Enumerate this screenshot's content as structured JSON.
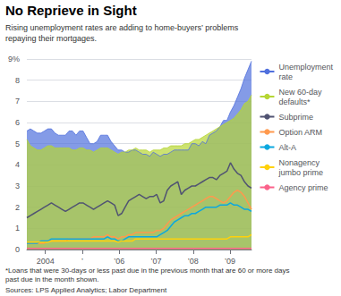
{
  "chart_data": {
    "type": "line",
    "title": "No Reprieve in Sight",
    "subtitle": "Rising unemployment rates are adding to home-buyers’ problems\nrepaying their mortgages.",
    "annotations": [
      "*Loans that were 30-days or less past due in the previous month that are 60 or more days\npast due in the month shown.",
      "Sources: LPS Applied Analytics; Labor Department"
    ],
    "x": [
      2003.5,
      2003.595,
      2003.69,
      2003.785,
      2003.88,
      2003.975,
      2004.07,
      2004.165,
      2004.26,
      2004.355,
      2004.45,
      2004.545,
      2004.64,
      2004.735,
      2004.83,
      2004.925,
      2005.02,
      2005.115,
      2005.21,
      2005.305,
      2005.4,
      2005.495,
      2005.59,
      2005.685,
      2005.78,
      2005.875,
      2005.97,
      2006.065,
      2006.16,
      2006.255,
      2006.35,
      2006.445,
      2006.54,
      2006.635,
      2006.73,
      2006.825,
      2006.92,
      2007.015,
      2007.11,
      2007.205,
      2007.3,
      2007.395,
      2007.49,
      2007.585,
      2007.68,
      2007.775,
      2007.87,
      2007.965,
      2008.06,
      2008.155,
      2008.25,
      2008.345,
      2008.44,
      2008.535,
      2008.63,
      2008.725,
      2008.82,
      2008.915,
      2009.01,
      2009.105,
      2009.2,
      2009.295,
      2009.39,
      2009.485,
      2009.58
    ],
    "xlim": [
      2003.5,
      2009.58
    ],
    "xticks": [
      2004,
      {
        "value": 2005,
        "label": "’"
      },
      {
        "value": 2006,
        "label": "’06"
      },
      {
        "value": 2007,
        "label": "’07"
      },
      {
        "value": 2008,
        "label": "’08"
      },
      {
        "value": 2009,
        "label": "’09"
      }
    ],
    "ylim": [
      0,
      9
    ],
    "yticks": [
      0,
      1,
      2,
      3,
      4,
      5,
      6,
      7,
      8,
      {
        "value": 9,
        "label": "9%"
      }
    ],
    "grid": true,
    "legend": "right",
    "series": [
      {
        "name": "Unemployment\nrate",
        "type": "area",
        "values": [
          5.6,
          5.7,
          5.6,
          5.5,
          5.5,
          5.6,
          5.7,
          5.7,
          5.5,
          5.4,
          5.4,
          5.4,
          5.6,
          5.6,
          5.4,
          5.6,
          5.6,
          5.3,
          5.0,
          5.0,
          5.1,
          5.4,
          5.4,
          5.4,
          5.1,
          4.9,
          4.7,
          4.7,
          4.6,
          4.6,
          4.7,
          4.7,
          4.6,
          4.5,
          4.5,
          4.4,
          4.6,
          4.5,
          4.4,
          4.5,
          4.5,
          4.6,
          4.7,
          4.7,
          4.7,
          4.7,
          4.7,
          5.0,
          5.0,
          4.9,
          5.1,
          5.0,
          5.4,
          5.5,
          5.6,
          5.8,
          6.1,
          6.1,
          6.5,
          6.8,
          7.2,
          7.6,
          8.1,
          8.5,
          8.9
        ]
      },
      {
        "name": "New 60-day\ndefaults*",
        "type": "area",
        "values": [
          5.2,
          4.9,
          4.8,
          4.7,
          4.7,
          4.8,
          4.9,
          4.9,
          4.8,
          4.8,
          4.8,
          4.8,
          4.8,
          4.7,
          4.7,
          4.8,
          4.8,
          4.7,
          4.7,
          4.6,
          4.7,
          4.8,
          4.8,
          4.8,
          4.7,
          4.6,
          4.5,
          4.6,
          4.6,
          4.7,
          4.7,
          4.8,
          4.7,
          4.7,
          4.7,
          4.6,
          4.7,
          4.7,
          4.7,
          4.8,
          4.8,
          4.9,
          4.9,
          4.9,
          4.9,
          5.0,
          5.0,
          5.1,
          5.2,
          5.2,
          5.3,
          5.4,
          5.5,
          5.6,
          5.7,
          5.8,
          5.9,
          6.0,
          6.1,
          6.2,
          6.4,
          6.6,
          6.9,
          7.0,
          7.3
        ]
      },
      {
        "name": "Subprime",
        "type": "line",
        "values": [
          1.5,
          1.6,
          1.7,
          1.8,
          1.9,
          2.0,
          2.1,
          2.2,
          2.1,
          2.0,
          1.9,
          1.8,
          1.9,
          2.0,
          2.1,
          2.2,
          2.2,
          2.1,
          2.0,
          1.9,
          2.0,
          2.1,
          2.2,
          2.3,
          2.2,
          2.1,
          1.6,
          1.7,
          2.0,
          2.3,
          2.4,
          2.5,
          2.6,
          2.5,
          2.4,
          2.5,
          2.5,
          2.6,
          2.2,
          2.3,
          2.8,
          3.0,
          3.1,
          3.2,
          2.6,
          2.8,
          2.9,
          3.0,
          3.0,
          3.1,
          3.2,
          3.3,
          3.4,
          3.4,
          3.3,
          3.5,
          3.6,
          3.7,
          4.1,
          3.8,
          3.6,
          3.5,
          3.2,
          3.0,
          2.9
        ]
      },
      {
        "name": "Option ARM",
        "type": "line",
        "values": [
          0.3,
          0.3,
          0.3,
          0.3,
          0.3,
          0.3,
          0.4,
          0.4,
          0.4,
          0.4,
          0.4,
          0.4,
          0.5,
          0.5,
          0.5,
          0.5,
          0.5,
          0.5,
          0.5,
          0.6,
          0.6,
          0.6,
          0.6,
          0.7,
          0.6,
          0.6,
          0.5,
          0.6,
          0.6,
          0.7,
          0.7,
          0.8,
          0.8,
          0.8,
          0.8,
          0.8,
          0.8,
          0.9,
          0.9,
          1.0,
          1.2,
          1.4,
          1.5,
          1.6,
          1.7,
          1.8,
          1.9,
          2.0,
          2.1,
          2.2,
          2.3,
          2.4,
          2.5,
          2.5,
          2.4,
          2.3,
          2.2,
          2.3,
          2.5,
          2.7,
          2.8,
          2.7,
          2.5,
          2.2,
          1.9
        ]
      },
      {
        "name": "Alt-A",
        "type": "line",
        "values": [
          0.3,
          0.3,
          0.3,
          0.3,
          0.4,
          0.4,
          0.4,
          0.5,
          0.5,
          0.5,
          0.5,
          0.5,
          0.5,
          0.5,
          0.5,
          0.5,
          0.5,
          0.5,
          0.5,
          0.5,
          0.5,
          0.5,
          0.5,
          0.6,
          0.5,
          0.5,
          0.4,
          0.4,
          0.5,
          0.6,
          0.6,
          0.6,
          0.6,
          0.6,
          0.6,
          0.6,
          0.6,
          0.6,
          0.7,
          0.8,
          0.9,
          1.1,
          1.3,
          1.4,
          1.5,
          1.6,
          1.6,
          1.7,
          1.7,
          1.8,
          1.9,
          2.0,
          2.0,
          2.0,
          2.0,
          2.1,
          2.1,
          2.1,
          2.2,
          2.1,
          2.1,
          2.0,
          1.9,
          1.9,
          1.8
        ]
      },
      {
        "name": "Nonagency\njumbo prime",
        "type": "line",
        "values": [
          0.35,
          0.35,
          0.35,
          0.35,
          0.35,
          0.35,
          0.35,
          0.4,
          0.4,
          0.4,
          0.4,
          0.4,
          0.4,
          0.4,
          0.4,
          0.4,
          0.4,
          0.4,
          0.4,
          0.4,
          0.4,
          0.4,
          0.4,
          0.4,
          0.4,
          0.4,
          0.35,
          0.4,
          0.4,
          0.4,
          0.4,
          0.5,
          0.5,
          0.5,
          0.5,
          0.5,
          0.5,
          0.5,
          0.5,
          0.5,
          0.5,
          0.5,
          0.5,
          0.5,
          0.5,
          0.5,
          0.5,
          0.5,
          0.5,
          0.5,
          0.5,
          0.5,
          0.5,
          0.5,
          0.5,
          0.5,
          0.5,
          0.5,
          0.6,
          0.6,
          0.6,
          0.6,
          0.6,
          0.6,
          0.7
        ]
      },
      {
        "name": "Agency prime",
        "type": "line",
        "values": [
          0.05,
          0.05,
          0.05,
          0.05,
          0.05,
          0.05,
          0.05,
          0.05,
          0.05,
          0.05,
          0.05,
          0.05,
          0.05,
          0.05,
          0.05,
          0.05,
          0.05,
          0.05,
          0.05,
          0.05,
          0.05,
          0.05,
          0.05,
          0.05,
          0.05,
          0.05,
          0.05,
          0.05,
          0.05,
          0.05,
          0.05,
          0.05,
          0.05,
          0.05,
          0.05,
          0.05,
          0.05,
          0.05,
          0.05,
          0.05,
          0.05,
          0.05,
          0.05,
          0.05,
          0.05,
          0.05,
          0.05,
          0.05,
          0.05,
          0.05,
          0.05,
          0.05,
          0.05,
          0.05,
          0.05,
          0.05,
          0.05,
          0.05,
          0.05,
          0.05,
          0.05,
          0.05,
          0.05,
          0.05,
          0.05
        ]
      }
    ]
  }
}
